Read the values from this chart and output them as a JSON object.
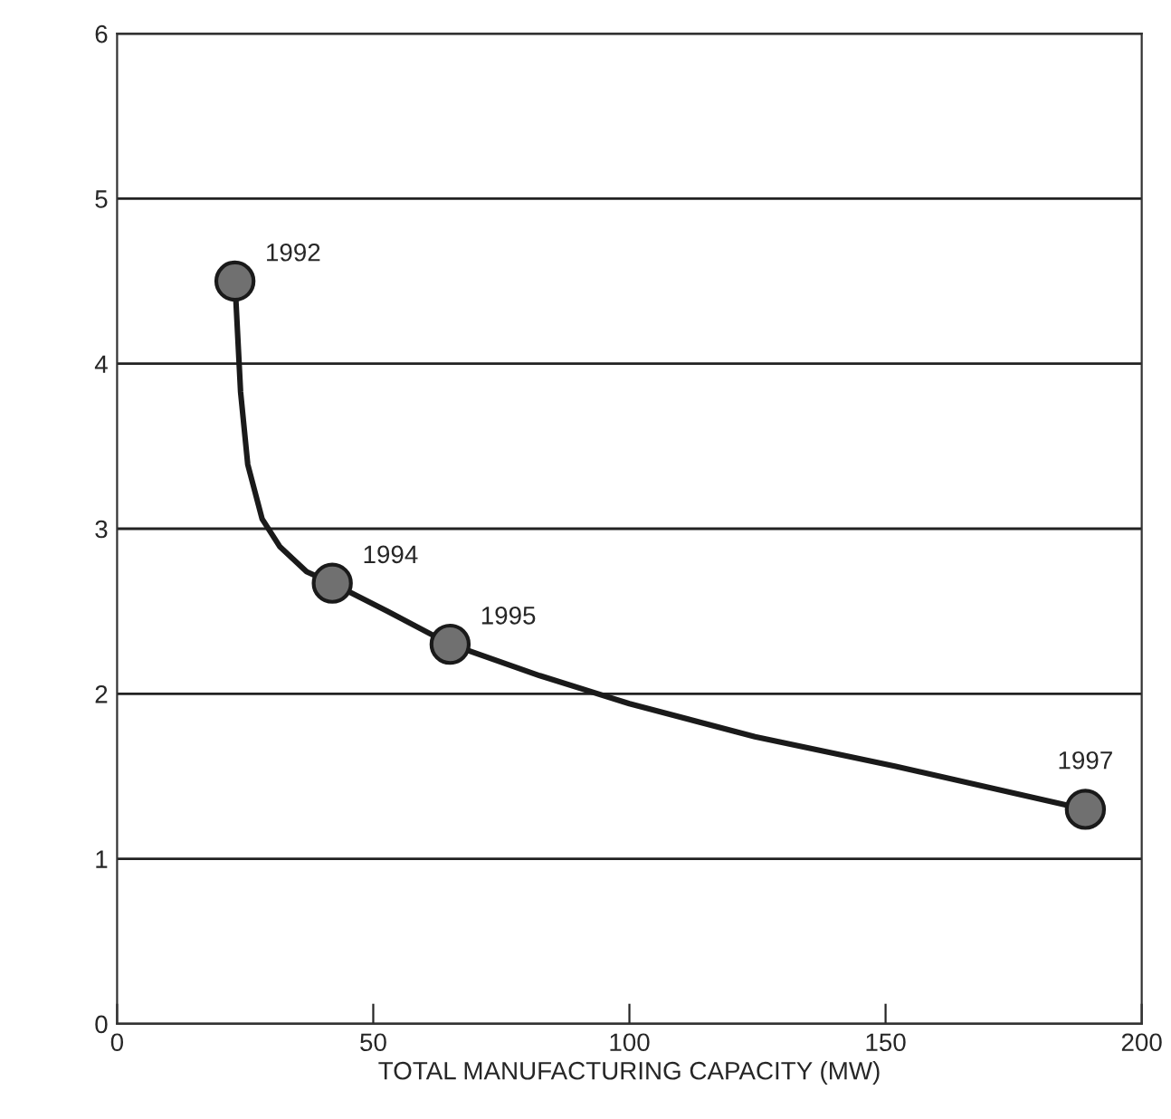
{
  "chart_data": {
    "type": "line",
    "xlabel": "TOTAL MANUFACTURING CAPACITY (MW)",
    "series": [
      {
        "marker": "none",
        "color": "#1a1a1a",
        "x": [
          23,
          24.1,
          25.5,
          28.3,
          31.8,
          37,
          42,
          52.8,
          65,
          82.5,
          100,
          124.5,
          152,
          189
        ],
        "values": [
          4.5,
          3.83,
          3.39,
          3.06,
          2.89,
          2.74,
          2.67,
          2.5,
          2.3,
          2.11,
          1.94,
          1.74,
          1.56,
          1.3
        ]
      },
      {
        "type": "scatter",
        "marker": "circle",
        "color": "#707070",
        "x": [
          23,
          42,
          65,
          189
        ],
        "values": [
          4.5,
          2.67,
          2.3,
          1.3
        ]
      }
    ],
    "line_style": "solid",
    "grid": "y",
    "xlim": [
      0,
      200
    ],
    "xticks": [
      0,
      50,
      100,
      150,
      200
    ],
    "ylim": [
      0,
      6
    ],
    "yticks": [
      0,
      1,
      2,
      3,
      4,
      5,
      6
    ],
    "annotations": [
      {
        "text": "1992",
        "x": 23,
        "y": 4.5
      },
      {
        "text": "1994",
        "x": 42,
        "y": 2.67
      },
      {
        "text": "1995",
        "x": 65,
        "y": 2.3
      },
      {
        "text": "1997",
        "x": 189,
        "y": 1.3
      }
    ]
  }
}
